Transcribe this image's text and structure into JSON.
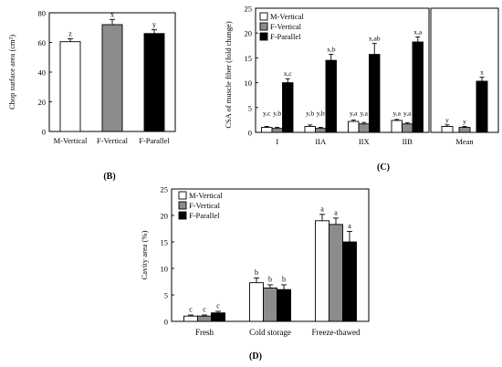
{
  "colors": {
    "white": "#ffffff",
    "gray": "#8c8c8c",
    "black": "#000000",
    "stroke": "#000000"
  },
  "chart_data": [
    {
      "id": "B",
      "type": "bar",
      "panel_label": "(B)",
      "ylabel": "Chop surface area (cm²)",
      "ylim": [
        0,
        80
      ],
      "yticks": [
        0,
        20,
        40,
        60,
        80
      ],
      "categories": [
        "M-Vertical",
        "F-Vertical",
        "F-Parallel"
      ],
      "values": [
        60.5,
        72.0,
        66.0
      ],
      "errors": [
        2.0,
        3.5,
        2.5
      ],
      "letters": [
        "z",
        "x",
        "y"
      ],
      "fills": [
        "white",
        "gray",
        "black"
      ]
    },
    {
      "id": "C",
      "type": "bar",
      "panel_label": "(C)",
      "ylabel": "CSA of muscle fiber (fold change)",
      "ylim": [
        0,
        25
      ],
      "yticks": [
        0,
        5,
        10,
        15,
        20,
        25
      ],
      "categories": [
        "I",
        "IIA",
        "IIX",
        "IIB"
      ],
      "legend": [
        "M-Vertical",
        "F-Vertical",
        "F-Parallel"
      ],
      "series": [
        {
          "name": "M-Vertical",
          "fill": "white",
          "values": [
            1.0,
            1.2,
            2.2,
            2.4
          ],
          "errors": [
            0.2,
            0.3,
            0.3,
            0.2
          ],
          "letters": [
            "y,c",
            "y,b",
            "y,a",
            "y,a"
          ]
        },
        {
          "name": "F-Vertical",
          "fill": "gray",
          "values": [
            0.8,
            0.8,
            1.7,
            1.7
          ],
          "errors": [
            0.2,
            0.2,
            0.3,
            0.2
          ],
          "letters": [
            "y,b",
            "y,b",
            "y,a",
            "y,a"
          ]
        },
        {
          "name": "F-Parallel",
          "fill": "black",
          "values": [
            10.0,
            14.5,
            15.7,
            18.2
          ],
          "errors": [
            0.8,
            1.2,
            2.2,
            1.0
          ],
          "letters": [
            "x,c",
            "x,b",
            "x,ab",
            "x,a"
          ]
        }
      ],
      "mean_panel": {
        "category": "Mean",
        "values": [
          1.2,
          1.0,
          10.3
        ],
        "errors": [
          0.3,
          0.2,
          0.8
        ],
        "letters": [
          "y",
          "y",
          "x"
        ],
        "fills": [
          "white",
          "gray",
          "black"
        ]
      }
    },
    {
      "id": "D",
      "type": "bar",
      "panel_label": "(D)",
      "ylabel": "Cavity area (%)",
      "ylim": [
        0,
        25
      ],
      "yticks": [
        0,
        5,
        10,
        15,
        20,
        25
      ],
      "categories": [
        "Fresh",
        "Cold storage",
        "Freeze-thawed"
      ],
      "legend": [
        "M-Vertical",
        "F-Vertical",
        "F-Parallel"
      ],
      "series": [
        {
          "name": "M-Vertical",
          "fill": "white",
          "values": [
            1.0,
            7.3,
            19.0
          ],
          "errors": [
            0.2,
            0.9,
            1.2
          ],
          "letters": [
            "c",
            "b",
            "a"
          ]
        },
        {
          "name": "F-Vertical",
          "fill": "gray",
          "values": [
            1.0,
            6.3,
            18.3
          ],
          "errors": [
            0.2,
            0.6,
            1.2
          ],
          "letters": [
            "c",
            "b",
            "a"
          ]
        },
        {
          "name": "F-Parallel",
          "fill": "black",
          "values": [
            1.6,
            6.0,
            15.0
          ],
          "errors": [
            0.3,
            0.9,
            2.0
          ],
          "letters": [
            "c",
            "b",
            "a"
          ]
        }
      ]
    }
  ]
}
